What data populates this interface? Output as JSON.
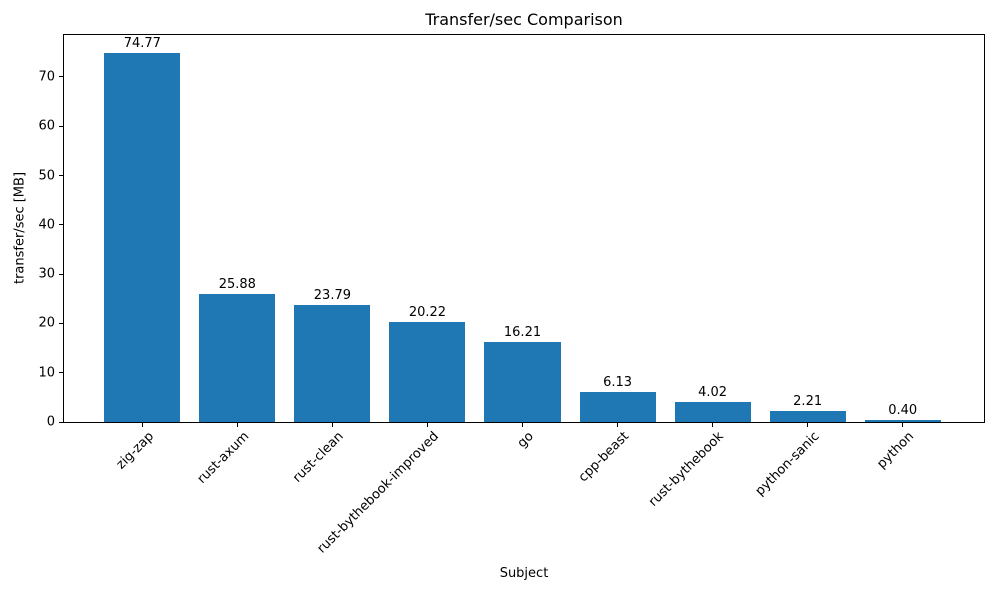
{
  "chart_data": {
    "type": "bar",
    "title": "Transfer/sec Comparison",
    "xlabel": "Subject",
    "ylabel": "transfer/sec [MB]",
    "categories": [
      "zig-zap",
      "rust-axum",
      "rust-clean",
      "rust-bythebook-improved",
      "go",
      "cpp-beast",
      "rust-bythebook",
      "python-sanic",
      "python"
    ],
    "values": [
      74.77,
      25.88,
      23.79,
      20.22,
      16.21,
      6.13,
      4.02,
      2.21,
      0.4
    ],
    "value_labels": [
      "74.77",
      "25.88",
      "23.79",
      "20.22",
      "16.21",
      "6.13",
      "4.02",
      "2.21",
      "0.40"
    ],
    "yticks": [
      0,
      10,
      20,
      30,
      40,
      50,
      60,
      70
    ],
    "ylim": [
      0,
      78.5
    ],
    "bar_color": "#1f77b4",
    "grid": false,
    "legend": null,
    "x_tick_label_rotation_deg": 45
  }
}
